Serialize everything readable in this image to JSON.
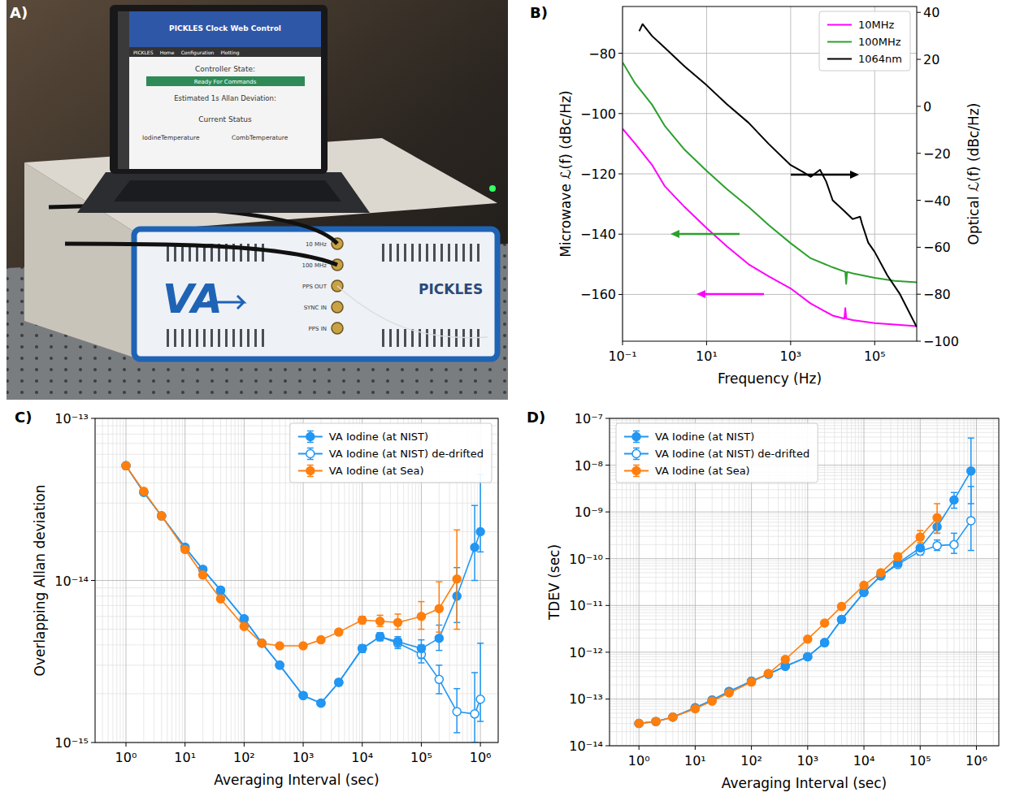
{
  "photo": {
    "panel": "A)",
    "screen": {
      "title": "PICKLES Clock Web Control",
      "nav": [
        "PICKLES",
        "Home",
        "Configuration",
        "Plotting"
      ],
      "state_label": "Controller State:",
      "state": "Ready For Commands",
      "allan_label": "Estimated 1s Allan Deviation:",
      "status_label": "Current Status",
      "fields": [
        "IodineTemperature",
        "CombTemperature"
      ]
    },
    "device": {
      "logo": "VA",
      "name": "PICKLES",
      "ports": [
        "10 MHz",
        "100 MHz",
        "PPS OUT",
        "SYNC IN",
        "PPS IN"
      ]
    }
  },
  "chart_data": [
    {
      "panel": "B)",
      "type": "line",
      "log": "x",
      "grid": true,
      "legend": "upper right",
      "xlabel": "Frequency (Hz)",
      "ylabel": "Microwave ℒ(f) (dBc/Hz)",
      "y2label": "Optical ℒ(f) (dBc/Hz)",
      "xlim": [
        0.1,
        1000000
      ],
      "xticks": [
        {
          "value": 0.1,
          "label": "10⁻¹"
        },
        {
          "value": 10,
          "label": "10¹"
        },
        {
          "value": 1000,
          "label": "10³"
        },
        {
          "value": 100000,
          "label": "10⁵"
        }
      ],
      "ylim": [
        -175.5,
        -64.5
      ],
      "yticks": [
        {
          "value": -160,
          "label": "−160"
        },
        {
          "value": -140,
          "label": "−140"
        },
        {
          "value": -120,
          "label": "−120"
        },
        {
          "value": -100,
          "label": "−100"
        },
        {
          "value": -80,
          "label": "−80"
        }
      ],
      "y2lim": [
        -100,
        42.5
      ],
      "y2ticks": [
        {
          "value": -100,
          "label": "−100"
        },
        {
          "value": -80,
          "label": "−80"
        },
        {
          "value": -60,
          "label": "−60"
        },
        {
          "value": -40,
          "label": "−40"
        },
        {
          "value": -20,
          "label": "−20"
        },
        0,
        20,
        40
      ],
      "series": [
        {
          "name": "10MHz",
          "color": "#ff00ff",
          "x": [
            0.1,
            0.2,
            0.5,
            1,
            3,
            10,
            30,
            100,
            300,
            1000,
            3000,
            10000,
            19000,
            20000,
            21000,
            30000,
            100000,
            300000,
            1000000
          ],
          "values": [
            -105,
            -110,
            -117,
            -124,
            -131,
            -138,
            -144,
            -150,
            -154,
            -158,
            -163,
            -167,
            -168,
            -164.5,
            -168,
            -168.5,
            -169.5,
            -170,
            -170.5
          ]
        },
        {
          "name": "100MHz",
          "color": "#2ca02c",
          "x": [
            0.1,
            0.2,
            0.5,
            1,
            3,
            10,
            30,
            100,
            300,
            1000,
            3000,
            10000,
            20000,
            21000,
            22000,
            30000,
            100000,
            300000,
            1000000
          ],
          "values": [
            -83,
            -90,
            -97,
            -104,
            -112,
            -119,
            -125,
            -131,
            -137,
            -143,
            -148,
            -151,
            -152.5,
            -156.5,
            -152.5,
            -153,
            -154.5,
            -155.5,
            -156
          ]
        },
        {
          "name": "1064nm",
          "color": "#000000",
          "axis": "y2",
          "x": [
            0.25,
            0.3,
            0.5,
            1,
            3,
            10,
            30,
            100,
            300,
            1000,
            2000,
            3000,
            5000,
            7000,
            10000,
            20000,
            30000,
            45000,
            50000,
            70000,
            100000,
            200000,
            400000,
            1000000
          ],
          "values": [
            32,
            35,
            30,
            25,
            17,
            9,
            1,
            -7,
            -16,
            -25,
            -28,
            -30,
            -27,
            -32,
            -40,
            -45,
            -48,
            -47,
            -50,
            -58,
            -62,
            -72,
            -80,
            -94
          ]
        }
      ]
    },
    {
      "panel": "C)",
      "type": "line",
      "log": true,
      "grid": "minor",
      "legend": "upper right",
      "xlabel": "Averaging Interval (sec)",
      "ylabel": "Overlapping Allan deviation",
      "xlim": [
        0.3,
        2000000
      ],
      "xticks": [
        {
          "value": 1,
          "label": "10⁰"
        },
        {
          "value": 10,
          "label": "10¹"
        },
        {
          "value": 100,
          "label": "10²"
        },
        {
          "value": 1000,
          "label": "10³"
        },
        {
          "value": 10000,
          "label": "10⁴"
        },
        {
          "value": 100000,
          "label": "10⁵"
        },
        {
          "value": 1000000,
          "label": "10⁶"
        }
      ],
      "ylim": [
        1e-15,
        1e-13
      ],
      "yticks": [
        {
          "value": 1e-15,
          "label": "10⁻¹⁵"
        },
        {
          "value": 1e-14,
          "label": "10⁻¹⁴"
        },
        {
          "value": 1e-13,
          "label": "10⁻¹³"
        }
      ],
      "x": [
        1,
        2,
        4,
        10,
        20,
        40,
        100,
        200,
        400,
        1000,
        2000,
        4000,
        10000,
        20000,
        40000,
        100000,
        200000,
        400000,
        800000,
        1000000
      ],
      "series": [
        {
          "name": "VA Iodine (at NIST)",
          "color": "#2196f3",
          "marker": "circle",
          "values": [
            5.1e-14,
            3.5e-14,
            2.5e-14,
            1.6e-14,
            1.17e-14,
            8.7e-15,
            5.8e-15,
            4.1e-15,
            3e-15,
            1.95e-15,
            1.75e-15,
            2.35e-15,
            3.8e-15,
            4.5e-15,
            4.2e-15,
            3.8e-15,
            4.4e-15,
            8e-15,
            1.6e-14,
            2e-14
          ],
          "error_minus": [
            0,
            0,
            0,
            0,
            0,
            0,
            0,
            0,
            0,
            0,
            0,
            1e-16,
            2e-16,
            2.5e-16,
            3e-16,
            5e-16,
            7e-16,
            2.5e-15,
            6e-15,
            5e-15
          ],
          "error_plus": [
            0,
            0,
            0,
            0,
            0,
            0,
            0,
            0,
            0,
            0,
            0,
            1e-16,
            2e-16,
            2.5e-16,
            3e-16,
            5e-16,
            9e-16,
            4e-15,
            1.3e-14,
            2.5e-14
          ]
        },
        {
          "name": "VA Iodine (at NIST) de-drifted",
          "color": "#2196f3",
          "marker": "open_circle",
          "values": [
            5.1e-14,
            3.5e-14,
            2.5e-14,
            1.6e-14,
            1.17e-14,
            8.7e-15,
            5.8e-15,
            4.1e-15,
            3e-15,
            1.95e-15,
            1.75e-15,
            2.35e-15,
            3.8e-15,
            4.5e-15,
            4.1e-15,
            3.5e-15,
            2.45e-15,
            1.55e-15,
            1.5e-15,
            1.85e-15
          ],
          "error_minus": [
            0,
            0,
            0,
            0,
            0,
            0,
            0,
            0,
            0,
            0,
            0,
            1e-16,
            2e-16,
            2.5e-16,
            3e-16,
            4e-16,
            4.5e-16,
            4e-16,
            5e-16,
            5e-16
          ],
          "error_plus": [
            0,
            0,
            0,
            0,
            0,
            0,
            0,
            0,
            0,
            0,
            0,
            1e-16,
            2e-16,
            2.5e-16,
            3e-16,
            5e-16,
            5.5e-16,
            6e-16,
            1.2e-15,
            2.25e-15
          ]
        },
        {
          "name": "VA Iodine (at Sea)",
          "color": "#ff7f0e",
          "marker": "circle",
          "values": [
            5.1e-14,
            3.55e-14,
            2.5e-14,
            1.55e-14,
            1.08e-14,
            7.7e-15,
            5.2e-15,
            4.1e-15,
            3.95e-15,
            3.95e-15,
            4.3e-15,
            4.8e-15,
            5.7e-15,
            5.6e-15,
            5.5e-15,
            6e-15,
            6.7e-15,
            1.02e-14,
            null,
            null
          ],
          "error_minus": [
            0,
            0,
            0,
            0,
            0,
            0,
            0,
            0,
            0,
            0,
            0,
            1e-16,
            3e-16,
            4e-16,
            5e-16,
            1e-15,
            1.9e-15,
            5.2e-15,
            null,
            null
          ],
          "error_plus": [
            0,
            0,
            0,
            0,
            0,
            0,
            0,
            0,
            0,
            0,
            0,
            1e-16,
            3e-16,
            5e-16,
            7e-16,
            1.4e-15,
            3.1e-15,
            1.03e-14,
            null,
            null
          ]
        }
      ]
    },
    {
      "panel": "D)",
      "type": "line",
      "log": true,
      "grid": "minor",
      "legend": "upper left",
      "xlabel": "Averaging Interval (sec)",
      "ylabel": "TDEV (sec)",
      "xlim": [
        0.3,
        2500000
      ],
      "xticks": [
        {
          "value": 1,
          "label": "10⁰"
        },
        {
          "value": 10,
          "label": "10¹"
        },
        {
          "value": 100,
          "label": "10²"
        },
        {
          "value": 1000,
          "label": "10³"
        },
        {
          "value": 10000,
          "label": "10⁴"
        },
        {
          "value": 100000,
          "label": "10⁵"
        },
        {
          "value": 1000000,
          "label": "10⁶"
        }
      ],
      "ylim": [
        1e-14,
        1e-07
      ],
      "yticks": [
        {
          "value": 1e-14,
          "label": "10⁻¹⁴"
        },
        {
          "value": 1e-13,
          "label": "10⁻¹³"
        },
        {
          "value": 1e-12,
          "label": "10⁻¹²"
        },
        {
          "value": 1e-11,
          "label": "10⁻¹¹"
        },
        {
          "value": 1e-10,
          "label": "10⁻¹⁰"
        },
        {
          "value": 1e-09,
          "label": "10⁻⁹"
        },
        {
          "value": 1e-08,
          "label": "10⁻⁸"
        },
        {
          "value": 1e-07,
          "label": "10⁻⁷"
        }
      ],
      "x": [
        1,
        2,
        4,
        10,
        20,
        40,
        100,
        200,
        400,
        1000,
        2000,
        4000,
        10000,
        20000,
        40000,
        100000,
        200000,
        400000,
        800000
      ],
      "series": [
        {
          "name": "VA Iodine (at NIST)",
          "color": "#2196f3",
          "marker": "circle",
          "values": [
            3e-14,
            3.3e-14,
            4.1e-14,
            6.5e-14,
            9.5e-14,
            1.45e-13,
            2.4e-13,
            3.4e-13,
            5e-13,
            8e-13,
            1.6e-12,
            5e-12,
            1.9e-11,
            4.3e-11,
            8e-11,
            1.7e-10,
            4.8e-10,
            1.8e-09,
            7.5e-09
          ],
          "error_minus": [
            0,
            0,
            0,
            0,
            0,
            0,
            0,
            0,
            0,
            0,
            0,
            0,
            2e-12,
            4e-12,
            8e-12,
            2e-11,
            1.3e-10,
            6e-10,
            6e-09
          ],
          "error_plus": [
            0,
            0,
            0,
            0,
            0,
            0,
            0,
            0,
            0,
            0,
            0,
            0,
            2e-12,
            4e-12,
            1e-11,
            2.5e-11,
            1.7e-10,
            8e-10,
            3.05e-08
          ]
        },
        {
          "name": "VA Iodine (at NIST) de-drifted",
          "color": "#2196f3",
          "marker": "open_circle",
          "values": [
            3e-14,
            3.3e-14,
            4.1e-14,
            6.5e-14,
            9.5e-14,
            1.45e-13,
            2.4e-13,
            3.4e-13,
            5e-13,
            8e-13,
            1.6e-12,
            5e-12,
            1.9e-11,
            4.3e-11,
            7.5e-11,
            1.45e-10,
            1.9e-10,
            2e-10,
            6.5e-10
          ],
          "error_minus": [
            0,
            0,
            0,
            0,
            0,
            0,
            0,
            0,
            0,
            0,
            0,
            0,
            2e-12,
            4e-12,
            8e-12,
            2.5e-11,
            4e-11,
            7e-11,
            5e-10
          ],
          "error_plus": [
            0,
            0,
            0,
            0,
            0,
            0,
            0,
            0,
            0,
            0,
            0,
            0,
            2e-12,
            4e-12,
            1e-11,
            3e-11,
            6e-11,
            1.5e-10,
            2.85e-09
          ]
        },
        {
          "name": "VA Iodine (at Sea)",
          "color": "#ff7f0e",
          "marker": "circle",
          "values": [
            3e-14,
            3.3e-14,
            4.1e-14,
            6.2e-14,
            9e-14,
            1.35e-13,
            2.3e-13,
            3.5e-13,
            7e-13,
            1.9e-12,
            4.2e-12,
            9.5e-12,
            2.7e-11,
            5e-11,
            1.1e-10,
            2.9e-10,
            7.5e-10,
            null,
            null
          ],
          "error_minus": [
            0,
            0,
            0,
            0,
            0,
            0,
            0,
            0,
            0,
            0,
            0,
            0,
            2e-12,
            5e-12,
            2e-11,
            7e-11,
            4e-10,
            null,
            null
          ],
          "error_plus": [
            0,
            0,
            0,
            0,
            0,
            0,
            0,
            0,
            0,
            0,
            0,
            0,
            3e-12,
            6e-12,
            2e-11,
            1.1e-10,
            7.5e-10,
            null,
            null
          ]
        }
      ]
    }
  ]
}
